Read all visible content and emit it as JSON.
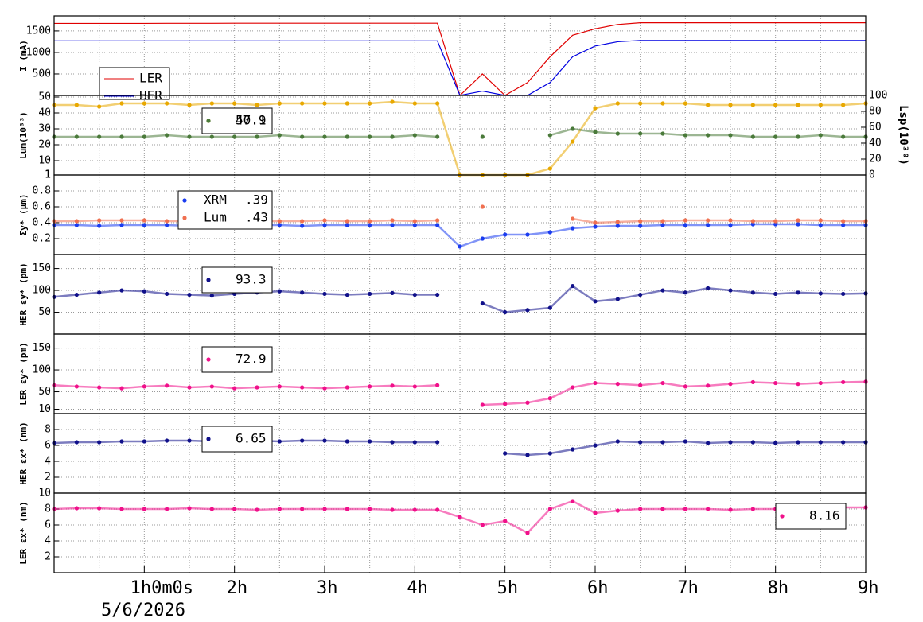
{
  "chart_data": [
    {
      "type": "line",
      "ylabel": "I (mA)",
      "xlim": [
        0,
        9
      ],
      "ylim": [
        0,
        1850
      ],
      "yticks": [
        500,
        1000,
        1500
      ],
      "grid": true,
      "x": [
        0,
        0.25,
        0.5,
        0.75,
        1,
        1.25,
        1.5,
        1.75,
        2,
        2.25,
        2.5,
        2.75,
        3,
        3.25,
        3.5,
        3.75,
        4,
        4.25,
        4.5,
        4.75,
        5,
        5.25,
        5.5,
        5.75,
        6,
        6.25,
        6.5,
        6.75,
        7,
        7.25,
        7.5,
        7.75,
        8,
        8.25,
        8.5,
        8.75,
        9
      ],
      "series": [
        {
          "name": "LER",
          "color": "#e00000",
          "values": [
            1675,
            1675,
            1675,
            1675,
            1675,
            1678,
            1678,
            1678,
            1680,
            1680,
            1680,
            1680,
            1680,
            1680,
            1680,
            1680,
            1680,
            1680,
            0,
            500,
            0,
            300,
            900,
            1400,
            1550,
            1650,
            1690,
            1690,
            1690,
            1690,
            1690,
            1690,
            1690,
            1690,
            1690,
            1690,
            1690
          ]
        },
        {
          "name": "HER",
          "color": "#0000e0",
          "values": [
            1270,
            1270,
            1270,
            1270,
            1270,
            1270,
            1270,
            1270,
            1270,
            1270,
            1270,
            1270,
            1270,
            1270,
            1270,
            1270,
            1270,
            1270,
            0,
            100,
            0,
            0,
            300,
            900,
            1150,
            1250,
            1280,
            1280,
            1280,
            1280,
            1280,
            1280,
            1280,
            1280,
            1280,
            1280,
            1280
          ]
        }
      ]
    },
    {
      "type": "scatter",
      "ylabel": "Lum(10³³)",
      "y2label": "Lsp(10³⁰)",
      "xlim": [
        0,
        9
      ],
      "ylim": [
        1,
        51
      ],
      "yticks": [
        1,
        10,
        20,
        30,
        40,
        50
      ],
      "y2lim": [
        0,
        100
      ],
      "y2ticks": [
        0,
        20,
        40,
        60,
        80,
        100
      ],
      "grid": true,
      "x": [
        0,
        0.25,
        0.5,
        0.75,
        1,
        1.25,
        1.5,
        1.75,
        2,
        2.25,
        2.5,
        2.75,
        3,
        3.25,
        3.5,
        3.75,
        4,
        4.25,
        4.5,
        4.75,
        5,
        5.25,
        5.5,
        5.75,
        6,
        6.25,
        6.5,
        6.75,
        7,
        7.25,
        7.5,
        7.75,
        8,
        8.25,
        8.5,
        8.75,
        9
      ],
      "series": [
        {
          "name": "50.9",
          "color": "#e8a800",
          "values": [
            45,
            45,
            44,
            46,
            46,
            46,
            45,
            46,
            46,
            45,
            46,
            46,
            46,
            46,
            46,
            47,
            46,
            46,
            1,
            1,
            1,
            1,
            5,
            22,
            43,
            46,
            46,
            46,
            46,
            45,
            45,
            45,
            45,
            45,
            45,
            45,
            46
          ]
        },
        {
          "name": "47.1",
          "color": "#4a7a3a",
          "values": [
            25,
            25,
            25,
            25,
            25,
            26,
            25,
            25,
            25,
            25,
            26,
            25,
            25,
            25,
            25,
            25,
            26,
            25,
            null,
            25,
            null,
            null,
            26,
            30,
            28,
            27,
            27,
            27,
            26,
            26,
            26,
            25,
            25,
            25,
            26,
            25,
            25
          ]
        }
      ]
    },
    {
      "type": "scatter",
      "ylabel": "Σy* (µm)",
      "xlim": [
        0,
        9
      ],
      "ylim": [
        0,
        1
      ],
      "yticks": [
        0.2,
        0.4,
        0.6,
        0.8,
        1
      ],
      "grid": true,
      "x": [
        0,
        0.25,
        0.5,
        0.75,
        1,
        1.25,
        1.5,
        1.75,
        2,
        2.25,
        2.5,
        2.75,
        3,
        3.25,
        3.5,
        3.75,
        4,
        4.25,
        4.5,
        4.75,
        5,
        5.25,
        5.5,
        5.75,
        6,
        6.25,
        6.5,
        6.75,
        7,
        7.25,
        7.5,
        7.75,
        8,
        8.25,
        8.5,
        8.75,
        9
      ],
      "series": [
        {
          "name": "XRM",
          "legend_label": ".39",
          "color": "#1a3cf0",
          "values": [
            0.37,
            0.37,
            0.36,
            0.37,
            0.37,
            0.37,
            0.36,
            0.37,
            0.37,
            0.37,
            0.37,
            0.36,
            0.37,
            0.37,
            0.37,
            0.37,
            0.37,
            0.37,
            0.1,
            0.2,
            0.25,
            0.25,
            0.28,
            0.33,
            0.35,
            0.36,
            0.36,
            0.37,
            0.37,
            0.37,
            0.37,
            0.38,
            0.38,
            0.38,
            0.37,
            0.37,
            0.37
          ]
        },
        {
          "name": "Lum",
          "legend_label": ".43",
          "color": "#f07050",
          "values": [
            0.42,
            0.42,
            0.43,
            0.43,
            0.43,
            0.42,
            0.42,
            0.43,
            0.43,
            0.42,
            0.42,
            0.42,
            0.43,
            0.42,
            0.42,
            0.43,
            0.42,
            0.43,
            null,
            0.6,
            null,
            null,
            null,
            0.45,
            0.4,
            0.41,
            0.42,
            0.42,
            0.43,
            0.43,
            0.43,
            0.42,
            0.42,
            0.43,
            0.43,
            0.42,
            0.42
          ]
        }
      ]
    },
    {
      "type": "scatter",
      "ylabel": "HER εy* (pm)",
      "xlim": [
        0,
        9
      ],
      "ylim": [
        0,
        182
      ],
      "yticks": [
        50,
        100,
        150
      ],
      "grid": true,
      "x": [
        0,
        0.25,
        0.5,
        0.75,
        1,
        1.25,
        1.5,
        1.75,
        2,
        2.25,
        2.5,
        2.75,
        3,
        3.25,
        3.5,
        3.75,
        4,
        4.25,
        4.5,
        4.75,
        5,
        5.25,
        5.5,
        5.75,
        6,
        6.25,
        6.5,
        6.75,
        7,
        7.25,
        7.5,
        7.75,
        8,
        8.25,
        8.5,
        8.75,
        9
      ],
      "series": [
        {
          "name": "93.3",
          "color": "#10108a",
          "values": [
            85,
            90,
            95,
            100,
            98,
            92,
            90,
            88,
            92,
            95,
            98,
            95,
            92,
            90,
            92,
            94,
            90,
            90,
            null,
            70,
            50,
            55,
            60,
            110,
            75,
            80,
            90,
            100,
            95,
            105,
            100,
            95,
            92,
            95,
            93,
            92,
            93
          ]
        }
      ]
    },
    {
      "type": "scatter",
      "ylabel": "LER εy* (pm)",
      "xlim": [
        0,
        9
      ],
      "ylim": [
        0,
        182
      ],
      "yticks": [
        10,
        50,
        100,
        150
      ],
      "grid": true,
      "x": [
        0,
        0.25,
        0.5,
        0.75,
        1,
        1.25,
        1.5,
        1.75,
        2,
        2.25,
        2.5,
        2.75,
        3,
        3.25,
        3.5,
        3.75,
        4,
        4.25,
        4.5,
        4.75,
        5,
        5.25,
        5.5,
        5.75,
        6,
        6.25,
        6.5,
        6.75,
        7,
        7.25,
        7.5,
        7.75,
        8,
        8.25,
        8.5,
        8.75,
        9
      ],
      "series": [
        {
          "name": "72.9",
          "color": "#f0108a",
          "values": [
            65,
            62,
            60,
            58,
            62,
            64,
            60,
            62,
            58,
            60,
            62,
            60,
            58,
            60,
            62,
            64,
            62,
            65,
            null,
            20,
            22,
            25,
            35,
            60,
            70,
            68,
            65,
            70,
            62,
            64,
            68,
            72,
            70,
            68,
            70,
            72,
            73
          ]
        }
      ]
    },
    {
      "type": "scatter",
      "ylabel": "HER εx* (nm)",
      "xlim": [
        0,
        9
      ],
      "ylim": [
        0,
        10
      ],
      "yticks": [
        2,
        4,
        6,
        8
      ],
      "grid": true,
      "x": [
        0,
        0.25,
        0.5,
        0.75,
        1,
        1.25,
        1.5,
        1.75,
        2,
        2.25,
        2.5,
        2.75,
        3,
        3.25,
        3.5,
        3.75,
        4,
        4.25,
        4.5,
        4.75,
        5,
        5.25,
        5.5,
        5.75,
        6,
        6.25,
        6.5,
        6.75,
        7,
        7.25,
        7.5,
        7.75,
        8,
        8.25,
        8.5,
        8.75,
        9
      ],
      "series": [
        {
          "name": "6.65",
          "color": "#10108a",
          "values": [
            6.3,
            6.4,
            6.4,
            6.5,
            6.5,
            6.6,
            6.6,
            6.5,
            6.5,
            6.6,
            6.5,
            6.6,
            6.6,
            6.5,
            6.5,
            6.4,
            6.4,
            6.4,
            null,
            null,
            5.0,
            4.8,
            5.0,
            5.5,
            6.0,
            6.5,
            6.4,
            6.4,
            6.5,
            6.3,
            6.4,
            6.4,
            6.3,
            6.4,
            6.4,
            6.4,
            6.4
          ]
        }
      ]
    },
    {
      "type": "scatter",
      "ylabel": "LER εx* (nm)",
      "xlim": [
        0,
        9
      ],
      "ylim": [
        0,
        10
      ],
      "yticks": [
        2,
        4,
        6,
        8,
        10
      ],
      "grid": true,
      "xticks": [
        {
          "value": 1,
          "label": "1h0m0s"
        },
        {
          "value": 2,
          "label": "2h"
        },
        {
          "value": 3,
          "label": "3h"
        },
        {
          "value": 4,
          "label": "4h"
        },
        {
          "value": 5,
          "label": "5h"
        },
        {
          "value": 6,
          "label": "6h"
        },
        {
          "value": 7,
          "label": "7h"
        },
        {
          "value": 8,
          "label": "8h"
        },
        {
          "value": 9,
          "label": "9h"
        }
      ],
      "xlabel": "5/6/2026",
      "x": [
        0,
        0.25,
        0.5,
        0.75,
        1,
        1.25,
        1.5,
        1.75,
        2,
        2.25,
        2.5,
        2.75,
        3,
        3.25,
        3.5,
        3.75,
        4,
        4.25,
        4.5,
        4.75,
        5,
        5.25,
        5.5,
        5.75,
        6,
        6.25,
        6.5,
        6.75,
        7,
        7.25,
        7.5,
        7.75,
        8,
        8.25,
        8.5,
        8.75,
        9
      ],
      "series": [
        {
          "name": "8.16",
          "color": "#f0108a",
          "values": [
            8.0,
            8.1,
            8.1,
            8.0,
            8.0,
            8.0,
            8.1,
            8.0,
            8.0,
            7.9,
            8.0,
            8.0,
            8.0,
            8.0,
            8.0,
            7.9,
            7.9,
            7.9,
            7,
            6,
            6.5,
            5,
            8,
            9,
            7.5,
            7.8,
            8.0,
            8.0,
            8.0,
            8.0,
            7.9,
            8.0,
            8.0,
            8.1,
            8.2,
            8.2,
            8.2
          ]
        }
      ]
    }
  ]
}
